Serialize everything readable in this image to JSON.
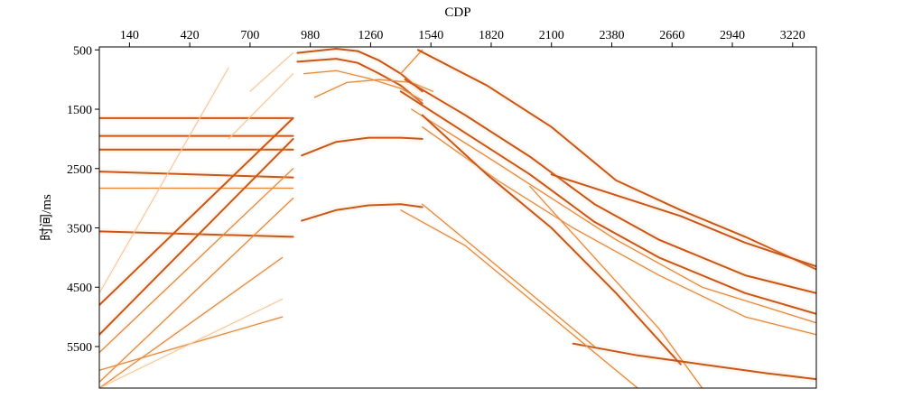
{
  "chart_data": {
    "type": "seismic-section",
    "title": "",
    "xlabel": "CDP",
    "ylabel": "时间/ms",
    "x_axis_position": "top",
    "xlim": [
      0,
      3330
    ],
    "ylim": [
      6200,
      450
    ],
    "y_inverted": true,
    "x_ticks": [
      140,
      420,
      700,
      980,
      1260,
      1540,
      1820,
      2100,
      2380,
      2660,
      2940,
      3220
    ],
    "y_ticks": [
      500,
      1500,
      2500,
      3500,
      4500,
      5500
    ],
    "grid": false,
    "legend": "none",
    "colors": {
      "event_strong": "#c8561a",
      "event_medium": "#e38a3e",
      "event_weak": "#f3c491",
      "background": "#ffffff",
      "frame": "#000000"
    },
    "reflections": [
      {
        "name": "flat-reflector-1",
        "strength": "strong",
        "x": [
          0,
          900
        ],
        "t": [
          1650,
          1650
        ]
      },
      {
        "name": "flat-reflector-2",
        "strength": "strong",
        "x": [
          0,
          900
        ],
        "t": [
          1950,
          1950
        ]
      },
      {
        "name": "flat-reflector-3",
        "strength": "strong",
        "x": [
          0,
          900
        ],
        "t": [
          2180,
          2180
        ]
      },
      {
        "name": "flat-reflector-4",
        "strength": "strong",
        "x": [
          0,
          900
        ],
        "t": [
          2550,
          2650
        ]
      },
      {
        "name": "flat-reflector-5",
        "strength": "medium",
        "x": [
          0,
          900
        ],
        "t": [
          2830,
          2830
        ]
      },
      {
        "name": "flat-reflector-6",
        "strength": "strong",
        "x": [
          0,
          900
        ],
        "t": [
          3560,
          3650
        ]
      },
      {
        "name": "dipping-1",
        "strength": "strong",
        "x": [
          0,
          900
        ],
        "t": [
          4800,
          1650
        ]
      },
      {
        "name": "dipping-2",
        "strength": "strong",
        "x": [
          0,
          900
        ],
        "t": [
          5300,
          2000
        ]
      },
      {
        "name": "dipping-3",
        "strength": "medium",
        "x": [
          0,
          900
        ],
        "t": [
          5600,
          2500
        ]
      },
      {
        "name": "dipping-4",
        "strength": "medium",
        "x": [
          0,
          900
        ],
        "t": [
          6100,
          3000
        ]
      },
      {
        "name": "dipping-5",
        "strength": "medium",
        "x": [
          0,
          850
        ],
        "t": [
          6200,
          4000
        ]
      },
      {
        "name": "dipping-6",
        "strength": "weak",
        "x": [
          0,
          600
        ],
        "t": [
          4600,
          800
        ]
      },
      {
        "name": "dipping-7",
        "strength": "medium",
        "x": [
          0,
          850
        ],
        "t": [
          5900,
          5000
        ]
      },
      {
        "name": "dipping-8",
        "strength": "weak",
        "x": [
          0,
          850
        ],
        "t": [
          6200,
          4700
        ]
      },
      {
        "name": "anticline-top",
        "strength": "strong",
        "x": [
          920,
          1100,
          1200,
          1300,
          1400,
          1500
        ],
        "t": [
          550,
          480,
          520,
          680,
          900,
          1200
        ]
      },
      {
        "name": "anticline-2",
        "strength": "strong",
        "x": [
          920,
          1100,
          1200,
          1300,
          1400,
          1500
        ],
        "t": [
          700,
          650,
          720,
          900,
          1100,
          1400
        ]
      },
      {
        "name": "anticline-3",
        "strength": "medium",
        "x": [
          950,
          1100,
          1250,
          1400,
          1500
        ],
        "t": [
          900,
          850,
          980,
          1150,
          1350
        ]
      },
      {
        "name": "anticline-4",
        "strength": "strong",
        "x": [
          940,
          1100,
          1250,
          1400,
          1500
        ],
        "t": [
          2280,
          2050,
          1980,
          1980,
          2000
        ]
      },
      {
        "name": "anticline-5",
        "strength": "strong",
        "x": [
          940,
          1100,
          1250,
          1400,
          1500
        ],
        "t": [
          3380,
          3200,
          3120,
          3100,
          3150
        ]
      },
      {
        "name": "diffraction-1",
        "strength": "medium",
        "x": [
          1000,
          1150,
          1300,
          1450,
          1550
        ],
        "t": [
          1300,
          1050,
          1000,
          1050,
          1200
        ]
      },
      {
        "name": "left-limb-1",
        "strength": "weak",
        "x": [
          700,
          900
        ],
        "t": [
          1200,
          550
        ]
      },
      {
        "name": "left-limb-2",
        "strength": "weak",
        "x": [
          600,
          900
        ],
        "t": [
          2000,
          900
        ]
      },
      {
        "name": "ramp-1",
        "strength": "medium",
        "x": [
          1400,
          1500
        ],
        "t": [
          900,
          500
        ]
      },
      {
        "name": "steep-1",
        "strength": "strong",
        "x": [
          1480,
          1800,
          2100,
          2400,
          2700,
          3000,
          3330
        ],
        "t": [
          500,
          1100,
          1800,
          2700,
          3200,
          3650,
          4200
        ]
      },
      {
        "name": "steep-2",
        "strength": "strong",
        "x": [
          1420,
          1700,
          2000,
          2300,
          2600,
          3000,
          3330
        ],
        "t": [
          1000,
          1600,
          2300,
          3100,
          3700,
          4300,
          4600
        ]
      },
      {
        "name": "steep-3",
        "strength": "strong",
        "x": [
          1400,
          1700,
          2000,
          2300,
          2600,
          3000,
          3330
        ],
        "t": [
          1200,
          1900,
          2600,
          3400,
          4000,
          4600,
          4950
        ]
      },
      {
        "name": "steep-4",
        "strength": "medium",
        "x": [
          1450,
          1800,
          2100,
          2400,
          2800,
          3330
        ],
        "t": [
          1500,
          2300,
          3000,
          3700,
          4500,
          5100
        ]
      },
      {
        "name": "steep-5",
        "strength": "medium",
        "x": [
          1500,
          1850,
          2200,
          2600,
          3000,
          3330
        ],
        "t": [
          1800,
          2700,
          3500,
          4300,
          5000,
          5300
        ]
      },
      {
        "name": "steep-6",
        "strength": "strong",
        "x": [
          1500,
          1800,
          2100,
          2400,
          2700
        ],
        "t": [
          1600,
          2600,
          3500,
          4600,
          5800
        ]
      },
      {
        "name": "crossing-1",
        "strength": "strong",
        "x": [
          2100,
          2400,
          2700,
          3000,
          3330
        ],
        "t": [
          2600,
          2950,
          3300,
          3750,
          4150
        ]
      },
      {
        "name": "crossing-2",
        "strength": "medium",
        "x": [
          2000,
          2300,
          2600,
          2800
        ],
        "t": [
          2800,
          4000,
          5200,
          6200
        ]
      },
      {
        "name": "deep-1",
        "strength": "strong",
        "x": [
          2200,
          2500,
          2800,
          3100,
          3330
        ],
        "t": [
          5450,
          5650,
          5800,
          5950,
          6050
        ]
      },
      {
        "name": "deep-2",
        "strength": "medium",
        "x": [
          1500,
          1800,
          2100,
          2300
        ],
        "t": [
          3100,
          4000,
          4900,
          5500
        ]
      },
      {
        "name": "deep-3",
        "strength": "medium",
        "x": [
          1400,
          1700,
          2000,
          2300,
          2500
        ],
        "t": [
          3200,
          3800,
          4700,
          5600,
          6200
        ]
      }
    ]
  }
}
